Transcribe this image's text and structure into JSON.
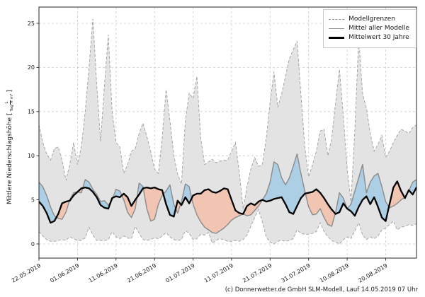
{
  "figure": {
    "footer": "(c) Donnerwetter.de GmbH SLM-Modell, Lauf 14.05.2019 07 Uhr",
    "y_axis_label_prefix": "Mittlere Niederschlagshöhe [",
    "unit_numerator": "L",
    "unit_denominator": "Tag × m²",
    "y_axis_label_suffix": "]"
  },
  "legend": {
    "items": [
      {
        "label": "Modellgrenzen",
        "style": "dashed-gray"
      },
      {
        "label": "Mittel aller Modelle",
        "style": "solid-gray"
      },
      {
        "label": "Mittelwert 30 Jahre",
        "style": "solid-black-thick"
      }
    ]
  },
  "colors": {
    "band_fill": "#e3e3e3",
    "band_edge": "#9e9e9e",
    "above_fill": "#accfe5",
    "below_fill": "#f2c5b2",
    "gray_line": "#8a8a8a",
    "black_line": "#000000",
    "grid": "#cccccc",
    "spine": "#262626",
    "tick_text": "#1a1a1a"
  },
  "chart_data": {
    "type": "line",
    "title": "",
    "xlabel": "",
    "ylabel": "Mittlere Niederschlagshöhe [L/(Tag × m²)]",
    "grid": true,
    "legend_position": "upper right",
    "x_unit": "days since 22.05.2019",
    "xlim_days": [
      0,
      98
    ],
    "ylim": [
      -1.6,
      26.8
    ],
    "y_ticks": [
      0,
      5,
      10,
      15,
      20,
      25
    ],
    "x_tick_days": [
      0,
      10,
      20,
      30,
      40,
      50,
      60,
      70,
      80,
      90
    ],
    "x_tick_labels": [
      "22.05.2019",
      "01.06.2019",
      "11.06.2019",
      "21.06.2019",
      "01.07.2019",
      "11.07.2019",
      "21.07.2019",
      "31.07.2019",
      "10.08.2019",
      "20.08.2019"
    ],
    "series": [
      {
        "name": "Modellgrenzen (obere Grenze)",
        "style": "dashed-gray",
        "values": [
          13.5,
          11.5,
          10.2,
          9.5,
          10.8,
          11.0,
          9.5,
          7.2,
          9.0,
          11.5,
          9.0,
          11.0,
          15.0,
          20.0,
          25.5,
          18.0,
          11.6,
          18.0,
          23.7,
          15.0,
          11.5,
          11.0,
          8.0,
          9.0,
          10.5,
          10.8,
          12.5,
          13.7,
          12.2,
          10.5,
          8.5,
          8.0,
          12.0,
          17.5,
          14.0,
          10.0,
          7.9,
          6.8,
          14.0,
          17.1,
          16.5,
          19.0,
          12.0,
          9.0,
          9.3,
          9.6,
          9.2,
          9.4,
          9.5,
          9.5,
          10.5,
          11.5,
          8.1,
          4.0,
          6.5,
          8.5,
          9.8,
          8.8,
          9.0,
          12.0,
          16.0,
          19.5,
          15.5,
          17.0,
          19.0,
          21.0,
          22.0,
          23.0,
          17.0,
          11.0,
          7.6,
          9.0,
          10.5,
          12.8,
          13.0,
          10.0,
          12.0,
          16.0,
          19.8,
          14.5,
          8.5,
          4.8,
          13.0,
          23.3,
          17.0,
          15.4,
          12.5,
          10.5,
          11.3,
          12.3,
          9.8,
          10.5,
          11.5,
          12.3,
          13.0,
          12.8,
          12.5,
          13.2,
          13.5
        ]
      },
      {
        "name": "Modellgrenzen (untere Grenze)",
        "style": "dashed-gray",
        "values": [
          1.4,
          0.9,
          0.5,
          0.3,
          0.3,
          0.4,
          0.5,
          0.4,
          0.8,
          0.6,
          0.4,
          0.4,
          0.7,
          1.9,
          1.0,
          0.4,
          0.4,
          0.4,
          0.5,
          1.4,
          0.8,
          0.6,
          0.9,
          0.7,
          0.6,
          2.0,
          1.2,
          0.5,
          0.4,
          0.5,
          0.7,
          0.6,
          0.9,
          1.3,
          0.8,
          0.5,
          0.4,
          0.5,
          1.5,
          1.2,
          0.5,
          0.6,
          1.1,
          1.0,
          1.3,
          0.1,
          0.4,
          0.6,
          0.5,
          0.3,
          0.3,
          0.4,
          0.3,
          0.5,
          1.0,
          2.0,
          3.0,
          3.9,
          2.5,
          0.8,
          0.2,
          0.0,
          0.3,
          0.4,
          0.3,
          0.4,
          0.6,
          1.6,
          1.2,
          1.1,
          1.1,
          1.2,
          1.4,
          2.4,
          1.4,
          0.8,
          0.4,
          0.2,
          0.0,
          0.5,
          0.8,
          0.6,
          1.5,
          2.4,
          1.0,
          0.5,
          0.8,
          0.6,
          0.9,
          1.6,
          1.8,
          2.2,
          2.6,
          1.6,
          1.9,
          2.0,
          2.2,
          2.1,
          2.3
        ]
      },
      {
        "name": "Mittel aller Modelle",
        "style": "solid-gray",
        "values": [
          7.0,
          6.5,
          5.5,
          4.2,
          3.2,
          2.9,
          2.8,
          3.6,
          5.0,
          5.8,
          5.9,
          5.8,
          7.3,
          7.0,
          6.2,
          5.6,
          4.8,
          4.9,
          4.4,
          5.0,
          6.2,
          6.0,
          5.0,
          3.6,
          3.0,
          4.0,
          6.9,
          6.5,
          4.0,
          2.6,
          2.8,
          4.5,
          5.5,
          6.0,
          6.7,
          4.5,
          3.5,
          4.8,
          6.8,
          6.5,
          4.5,
          3.3,
          2.5,
          1.9,
          1.6,
          1.3,
          1.2,
          1.5,
          1.8,
          2.2,
          2.7,
          3.0,
          3.2,
          3.4,
          3.2,
          3.3,
          3.8,
          4.3,
          5.0,
          5.7,
          7.0,
          9.3,
          9.0,
          7.5,
          6.7,
          7.5,
          8.8,
          10.2,
          8.0,
          6.0,
          4.2,
          3.3,
          3.4,
          4.0,
          3.0,
          2.2,
          2.0,
          3.6,
          5.8,
          5.2,
          4.0,
          4.5,
          6.0,
          7.5,
          9.0,
          5.8,
          7.0,
          7.7,
          8.0,
          6.5,
          4.8,
          4.1,
          4.3,
          4.6,
          5.0,
          5.3,
          6.0,
          7.0,
          7.3
        ]
      },
      {
        "name": "Mittelwert 30 Jahre",
        "style": "solid-black-thick",
        "values": [
          4.8,
          4.3,
          3.5,
          2.4,
          2.6,
          3.4,
          4.6,
          4.8,
          4.9,
          5.5,
          5.9,
          6.3,
          6.4,
          6.3,
          5.9,
          5.3,
          4.4,
          4.1,
          4.0,
          5.2,
          5.4,
          5.3,
          5.7,
          5.3,
          4.3,
          5.0,
          5.6,
          6.3,
          6.4,
          6.3,
          6.4,
          6.2,
          6.1,
          4.5,
          3.3,
          3.1,
          4.9,
          4.4,
          5.3,
          4.6,
          5.5,
          5.7,
          5.7,
          6.1,
          6.2,
          5.9,
          5.8,
          6.0,
          6.3,
          6.2,
          5.0,
          3.8,
          3.5,
          3.4,
          4.3,
          4.6,
          4.4,
          4.8,
          5.0,
          4.8,
          4.9,
          5.1,
          5.2,
          5.3,
          4.5,
          3.6,
          3.4,
          4.3,
          5.2,
          5.7,
          5.8,
          5.9,
          6.2,
          5.8,
          5.2,
          4.5,
          3.9,
          3.4,
          3.6,
          4.6,
          4.0,
          3.7,
          3.2,
          4.2,
          5.0,
          5.4,
          4.5,
          5.3,
          4.2,
          3.0,
          2.6,
          4.5,
          6.4,
          7.1,
          6.0,
          5.2,
          6.1,
          5.6,
          6.4
        ]
      }
    ],
    "fills": {
      "band_between_model_bounds": "gray",
      "model_mean_above_30yr_mean": "blue",
      "model_mean_below_30yr_mean": "pink"
    }
  }
}
